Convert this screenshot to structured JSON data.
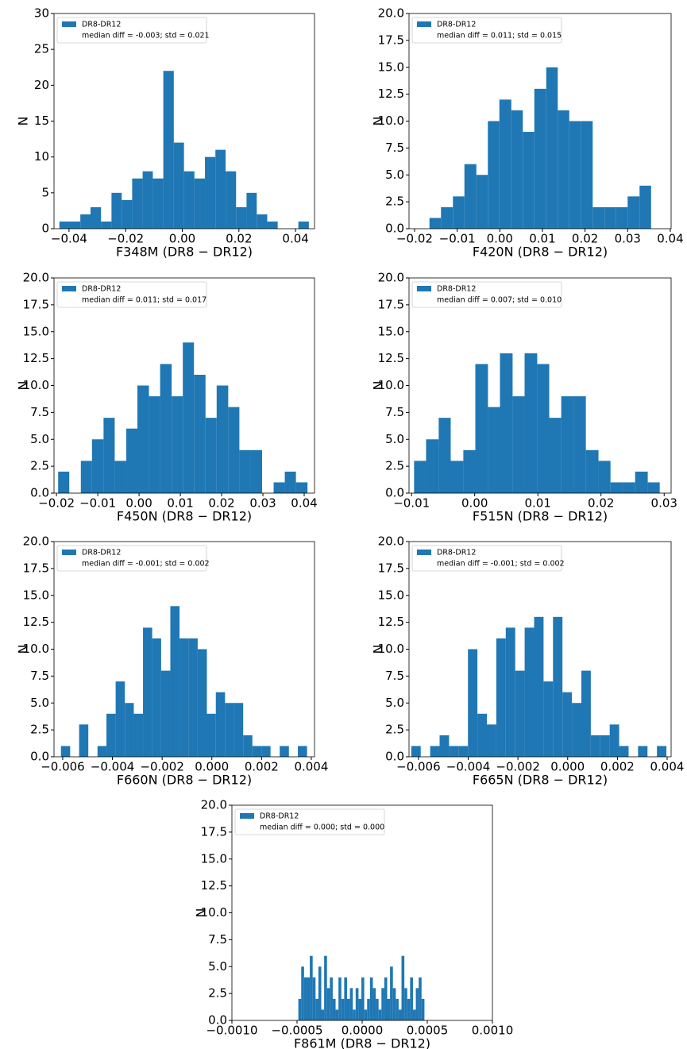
{
  "chart_data": [
    {
      "type": "histogram",
      "xlabel": "F348M (DR8 − DR12)",
      "ylabel": "N",
      "legend": "upper left",
      "annotation": "median diff = -0.003; std = 0.021",
      "series": [
        {
          "name": "DR8-DR12",
          "color": "#1f77b4",
          "values": [
            1,
            1,
            2,
            3,
            1,
            5,
            4,
            7,
            8,
            7,
            22,
            12,
            8,
            7,
            10,
            11,
            8,
            3,
            5,
            2,
            1,
            0,
            0,
            1
          ]
        }
      ],
      "bins": [
        -0.0434,
        -0.0397,
        -0.036,
        -0.0324,
        -0.0287,
        -0.025,
        -0.0214,
        -0.0177,
        -0.014,
        -0.0104,
        -0.0067,
        -0.003,
        0.0006,
        0.0043,
        0.008,
        0.0117,
        0.0153,
        0.019,
        0.0227,
        0.0263,
        0.03,
        0.0337,
        0.0373,
        0.041,
        0.0447
      ],
      "xlim": [
        -0.0453,
        0.0467
      ],
      "ylim": [
        0,
        30
      ],
      "xticks": [
        {
          "value": -0.04,
          "label": "−0.04"
        },
        {
          "value": -0.02,
          "label": "−0.02"
        },
        {
          "value": 0,
          "label": "0.00"
        },
        {
          "value": 0.02,
          "label": "0.02"
        },
        {
          "value": 0.04,
          "label": "0.04"
        }
      ],
      "yticks": [
        0,
        5,
        10,
        15,
        20,
        25,
        30
      ]
    },
    {
      "type": "histogram",
      "xlabel": "F420N (DR8 − DR12)",
      "ylabel": "N",
      "legend": "upper left",
      "annotation": "median diff = 0.011; std = 0.015",
      "series": [
        {
          "name": "DR8-DR12",
          "color": "#1f77b4",
          "values": [
            1,
            2,
            3,
            6,
            5,
            10,
            12,
            11,
            9,
            13,
            15,
            11,
            10,
            10,
            2,
            2,
            2,
            3,
            4
          ]
        }
      ],
      "bins": [
        -0.0165,
        -0.0138,
        -0.011,
        -0.0083,
        -0.0055,
        -0.0028,
        -0.0001,
        0.0027,
        0.0054,
        0.0081,
        0.0109,
        0.0136,
        0.0163,
        0.0191,
        0.0218,
        0.0246,
        0.0273,
        0.03,
        0.0328,
        0.0355
      ],
      "xlim": [
        -0.0213,
        0.0402
      ],
      "ylim": [
        0,
        20
      ],
      "xticks": [
        {
          "value": -0.02,
          "label": "−0.02"
        },
        {
          "value": -0.01,
          "label": "−0.01"
        },
        {
          "value": 0,
          "label": "0.00"
        },
        0.01,
        0.02,
        0.03,
        0.04
      ],
      "yticks": [
        {
          "value": 0,
          "label": "0.0"
        },
        2.5,
        {
          "value": 5,
          "label": "5.0"
        },
        7.5,
        {
          "value": 10,
          "label": "10.0"
        },
        12.5,
        {
          "value": 15,
          "label": "15.0"
        },
        17.5,
        {
          "value": 20,
          "label": "20.0"
        }
      ]
    },
    {
      "type": "histogram",
      "xlabel": "F450N (DR8 − DR12)",
      "ylabel": "N",
      "legend": "upper left",
      "annotation": "median diff = 0.011; std = 0.017",
      "series": [
        {
          "name": "DR8-DR12",
          "color": "#1f77b4",
          "values": [
            2,
            0,
            3,
            5,
            7,
            3,
            6,
            10,
            9,
            12,
            9,
            14,
            11,
            7,
            10,
            8,
            4,
            4,
            0,
            1,
            2,
            1
          ]
        }
      ],
      "bins": [
        -0.0196,
        -0.0169,
        -0.0141,
        -0.0114,
        -0.0086,
        -0.0059,
        -0.0031,
        -0.0004,
        0.0024,
        0.0051,
        0.0079,
        0.0106,
        0.0133,
        0.0161,
        0.0188,
        0.0216,
        0.0243,
        0.0271,
        0.0298,
        0.0326,
        0.0353,
        0.038,
        0.0408
      ],
      "xlim": [
        -0.0206,
        0.0425
      ],
      "ylim": [
        0,
        20
      ],
      "xticks": [
        {
          "value": -0.02,
          "label": "−0.02"
        },
        {
          "value": -0.01,
          "label": "−0.01"
        },
        {
          "value": 0,
          "label": "0.00"
        },
        0.01,
        0.02,
        0.03,
        0.04
      ],
      "yticks": [
        {
          "value": 0,
          "label": "0.0"
        },
        2.5,
        {
          "value": 5,
          "label": "5.0"
        },
        7.5,
        {
          "value": 10,
          "label": "10.0"
        },
        12.5,
        {
          "value": 15,
          "label": "15.0"
        },
        17.5,
        {
          "value": 20,
          "label": "20.0"
        }
      ]
    },
    {
      "type": "histogram",
      "xlabel": "F515N (DR8 − DR12)",
      "ylabel": "N",
      "legend": "upper left",
      "annotation": "median diff = 0.007; std = 0.010",
      "series": [
        {
          "name": "DR8-DR12",
          "color": "#1f77b4",
          "values": [
            3,
            5,
            7,
            3,
            4,
            12,
            8,
            13,
            9,
            13,
            12,
            7,
            9,
            9,
            4,
            3,
            1,
            1,
            2,
            1
          ]
        }
      ],
      "bins": [
        -0.0096,
        -0.0077,
        -0.0057,
        -0.0038,
        -0.0018,
        0.0001,
        0.0021,
        0.004,
        0.006,
        0.0079,
        0.0099,
        0.0118,
        0.0137,
        0.0157,
        0.0176,
        0.0196,
        0.0215,
        0.0235,
        0.0254,
        0.0274,
        0.0293
      ],
      "xlim": [
        -0.0104,
        0.0311
      ],
      "ylim": [
        0,
        20
      ],
      "xticks": [
        {
          "value": -0.01,
          "label": "−0.01"
        },
        {
          "value": 0,
          "label": "0.00"
        },
        0.01,
        0.02,
        0.03
      ],
      "yticks": [
        {
          "value": 0,
          "label": "0.0"
        },
        2.5,
        {
          "value": 5,
          "label": "5.0"
        },
        7.5,
        {
          "value": 10,
          "label": "10.0"
        },
        12.5,
        {
          "value": 15,
          "label": "15.0"
        },
        17.5,
        {
          "value": 20,
          "label": "20.0"
        }
      ]
    },
    {
      "type": "histogram",
      "xlabel": "F660N (DR8 − DR12)",
      "ylabel": "N",
      "legend": "upper left",
      "annotation": "median diff = -0.001; std = 0.002",
      "series": [
        {
          "name": "DR8-DR12",
          "color": "#1f77b4",
          "values": [
            1,
            0,
            3,
            0,
            1,
            4,
            7,
            5,
            4,
            12,
            11,
            8,
            14,
            11,
            11,
            10,
            4,
            6,
            5,
            5,
            2,
            1,
            1,
            0,
            1,
            0,
            1
          ]
        }
      ],
      "bins": [
        -0.00607,
        -0.0057,
        -0.00534,
        -0.00497,
        -0.0046,
        -0.00424,
        -0.00387,
        -0.0035,
        -0.00314,
        -0.00277,
        -0.0024,
        -0.00204,
        -0.00167,
        -0.0013,
        -0.00094,
        -0.00057,
        -0.0002,
        0.00016,
        0.00053,
        0.0009,
        0.00126,
        0.00163,
        0.002,
        0.00236,
        0.00273,
        0.0031,
        0.00346,
        0.00383
      ],
      "xlim": [
        -0.00635,
        0.00413
      ],
      "ylim": [
        0,
        20
      ],
      "xticks": [
        {
          "value": -0.006,
          "label": "−0.006"
        },
        {
          "value": -0.004,
          "label": "−0.004"
        },
        {
          "value": -0.002,
          "label": "−0.002"
        },
        {
          "value": 0,
          "label": "0.000"
        },
        0.002,
        0.004
      ],
      "yticks": [
        {
          "value": 0,
          "label": "0.0"
        },
        2.5,
        {
          "value": 5,
          "label": "5.0"
        },
        7.5,
        {
          "value": 10,
          "label": "10.0"
        },
        12.5,
        {
          "value": 15,
          "label": "15.0"
        },
        17.5,
        {
          "value": 20,
          "label": "20.0"
        }
      ]
    },
    {
      "type": "histogram",
      "xlabel": "F665N (DR8 − DR12)",
      "ylabel": "N",
      "legend": "upper left",
      "annotation": "median diff = -0.001; std = 0.002",
      "series": [
        {
          "name": "DR8-DR12",
          "color": "#1f77b4",
          "values": [
            1,
            0,
            1,
            2,
            1,
            1,
            10,
            4,
            3,
            11,
            12,
            8,
            12,
            13,
            7,
            13,
            6,
            5,
            8,
            2,
            2,
            3,
            1,
            0,
            1,
            0,
            1
          ]
        }
      ],
      "bins": [
        -0.00629,
        -0.00591,
        -0.00553,
        -0.00515,
        -0.00477,
        -0.00439,
        -0.00401,
        -0.00363,
        -0.00325,
        -0.00287,
        -0.00249,
        -0.00211,
        -0.00173,
        -0.00135,
        -0.00097,
        -0.00059,
        -0.00021,
        0.00017,
        0.00055,
        0.00093,
        0.00131,
        0.00169,
        0.00207,
        0.00245,
        0.00283,
        0.00321,
        0.00359,
        0.00397
      ],
      "xlim": [
        -0.00638,
        0.00416
      ],
      "ylim": [
        0,
        20
      ],
      "xticks": [
        {
          "value": -0.006,
          "label": "−0.006"
        },
        {
          "value": -0.004,
          "label": "−0.004"
        },
        {
          "value": -0.002,
          "label": "−0.002"
        },
        {
          "value": 0,
          "label": "0.000"
        },
        0.002,
        0.004
      ],
      "yticks": [
        {
          "value": 0,
          "label": "0.0"
        },
        2.5,
        {
          "value": 5,
          "label": "5.0"
        },
        7.5,
        {
          "value": 10,
          "label": "10.0"
        },
        12.5,
        {
          "value": 15,
          "label": "15.0"
        },
        17.5,
        {
          "value": 20,
          "label": "20.0"
        }
      ]
    },
    {
      "type": "histogram",
      "xlabel": "F861M (DR8 − DR12)",
      "ylabel": "N",
      "legend": "upper left",
      "annotation": "median diff = 0.000; std = 0.000",
      "series": [
        {
          "name": "DR8-DR12",
          "color": "#1f77b4",
          "values": [
            2,
            5,
            4,
            4,
            6,
            4,
            2,
            5,
            1,
            6,
            3,
            4,
            2,
            1,
            4,
            2,
            4,
            2,
            3,
            1,
            3,
            2,
            4,
            1,
            2,
            4,
            3,
            2,
            1,
            3,
            4,
            2,
            5,
            3,
            2,
            1,
            6,
            3,
            2,
            4,
            1,
            3,
            4,
            2
          ]
        }
      ],
      "bins": [
        -0.00049,
        -0.000468,
        -0.000446,
        -0.000424,
        -0.000402,
        -0.00038,
        -0.000358,
        -0.000336,
        -0.000314,
        -0.000292,
        -0.00027,
        -0.000248,
        -0.000226,
        -0.000204,
        -0.000182,
        -0.00016,
        -0.000138,
        -0.000116,
        -9.4e-05,
        -7.2e-05,
        -5e-05,
        -2.8e-05,
        -6e-06,
        1.6e-05,
        3.8e-05,
        6e-05,
        8.2e-05,
        0.000104,
        0.000126,
        0.000148,
        0.00017,
        0.000192,
        0.000214,
        0.000236,
        0.000258,
        0.00028,
        0.000302,
        0.000324,
        0.000346,
        0.000368,
        0.00039,
        0.000412,
        0.000434,
        0.000456,
        0.000478
      ],
      "xlim": [
        -0.001,
        0.001
      ],
      "ylim": [
        0,
        20
      ],
      "xticks": [
        {
          "value": -0.001,
          "label": "−0.0010"
        },
        {
          "value": -0.0005,
          "label": "−0.0005"
        },
        {
          "value": 0,
          "label": "0.0000"
        },
        {
          "value": 0.0005,
          "label": "0.0005"
        },
        {
          "value": 0.001,
          "label": "0.0010"
        }
      ],
      "yticks": [
        {
          "value": 0,
          "label": "0.0"
        },
        2.5,
        {
          "value": 5,
          "label": "5.0"
        },
        7.5,
        {
          "value": 10,
          "label": "10.0"
        },
        12.5,
        {
          "value": 15,
          "label": "15.0"
        },
        17.5,
        {
          "value": 20,
          "label": "20.0"
        }
      ]
    }
  ]
}
